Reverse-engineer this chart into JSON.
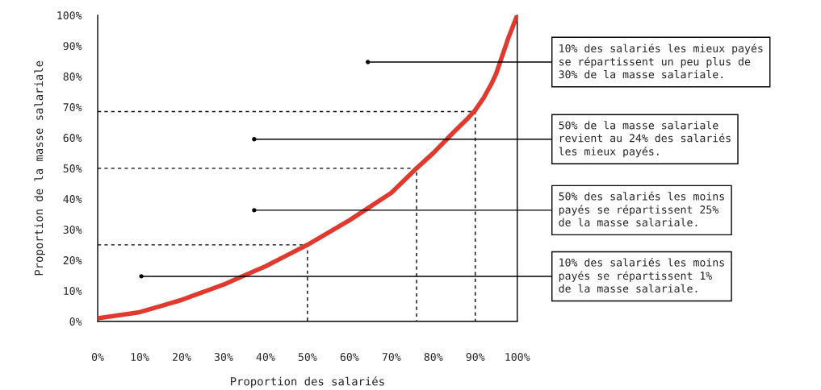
{
  "chart_data": {
    "type": "line",
    "xlabel": "Proportion des salariés",
    "ylabel": "Proportion de la masse salariale",
    "series": [
      {
        "color": "#e0392e",
        "x": [
          0,
          5,
          10,
          15,
          20,
          25,
          30,
          35,
          40,
          45,
          50,
          55,
          60,
          65,
          70,
          76,
          80,
          85,
          88,
          90,
          92,
          94,
          95,
          96,
          97,
          98,
          99,
          100
        ],
        "values": [
          1,
          2,
          3,
          5,
          7,
          9.5,
          12,
          15,
          18,
          21.5,
          25,
          29,
          33,
          37.5,
          42,
          50,
          55,
          62,
          66,
          69,
          73,
          78,
          81,
          85,
          89,
          93,
          96.5,
          100
        ]
      },
      {
        "color": "#000000",
        "line_style": "dashed",
        "x": [
          0,
          50,
          50
        ],
        "values": [
          25,
          25,
          0
        ]
      },
      {
        "color": "#000000",
        "line_style": "dashed",
        "x": [
          0,
          76,
          76
        ],
        "values": [
          50,
          50,
          0
        ]
      },
      {
        "color": "#000000",
        "line_style": "dashed",
        "x": [
          0,
          90,
          90
        ],
        "values": [
          68.5,
          68.5,
          0
        ]
      }
    ],
    "xlim": [
      0,
      100
    ],
    "ylim": [
      0,
      100
    ],
    "xticks": [
      {
        "value": 0,
        "label": "0%"
      },
      {
        "value": 10,
        "label": "10%"
      },
      {
        "value": 20,
        "label": "20%"
      },
      {
        "value": 30,
        "label": "30%"
      },
      {
        "value": 40,
        "label": "40%"
      },
      {
        "value": 50,
        "label": "50%"
      },
      {
        "value": 60,
        "label": "60%"
      },
      {
        "value": 70,
        "label": "70%"
      },
      {
        "value": 80,
        "label": "80%"
      },
      {
        "value": 90,
        "label": "90%"
      },
      {
        "value": 100,
        "label": "100%"
      }
    ],
    "yticks": [
      {
        "value": 0,
        "label": "0%"
      },
      {
        "value": 10,
        "label": "10%"
      },
      {
        "value": 20,
        "label": "20%"
      },
      {
        "value": 30,
        "label": "30%"
      },
      {
        "value": 40,
        "label": "40%"
      },
      {
        "value": 50,
        "label": "50%"
      },
      {
        "value": 60,
        "label": "60%"
      },
      {
        "value": 70,
        "label": "70%"
      },
      {
        "value": 80,
        "label": "80%"
      },
      {
        "value": 90,
        "label": "90%"
      },
      {
        "value": 100,
        "label": "100%"
      }
    ],
    "annotations": [
      {
        "text": "10% des salariés les mieux payés\nse répartissent un peu plus de\n30% de la masse salariale.",
        "x": 64.4,
        "y": 84.7
      },
      {
        "text": "50% de la masse salariale\nrevient au 24% des salariés\nles mieux payés.",
        "x": 37.3,
        "y": 59.5
      },
      {
        "text": "50% des salariés les moins\npayés se répartissent 25%\nde la masse salariale.",
        "x": 37.3,
        "y": 36.3
      },
      {
        "text": "10% des salariés les moins\npayés se répartissent 1%\nde la masse salariale.",
        "x": 10.4,
        "y": 14.7
      }
    ],
    "grid": false,
    "legend": false,
    "marker": "none"
  }
}
